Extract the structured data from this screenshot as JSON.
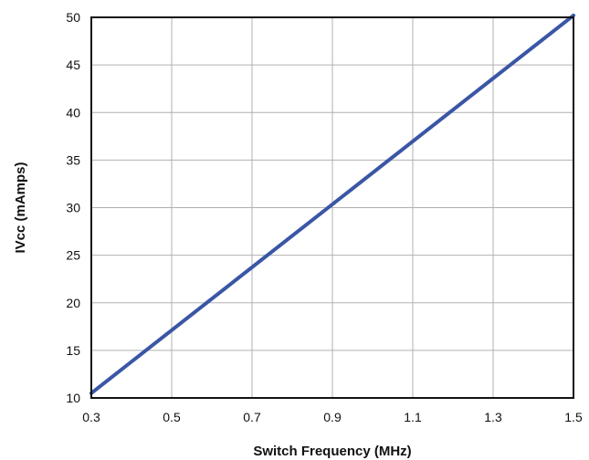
{
  "chart_data": {
    "type": "line",
    "title": "",
    "xlabel": "Switch Frequency (MHz)",
    "ylabel": "IVcc (mAmps)",
    "xlim": [
      0.3,
      1.5
    ],
    "ylim": [
      10,
      50
    ],
    "x_ticks": [
      "0.3",
      "0.5",
      "0.7",
      "0.9",
      "1.1",
      "1.3",
      "1.5"
    ],
    "y_ticks": [
      "10",
      "15",
      "20",
      "25",
      "30",
      "35",
      "40",
      "45",
      "50"
    ],
    "grid": true,
    "legend": "none",
    "series": [
      {
        "color": "#3a56a5",
        "x": [
          0.3,
          1.5
        ],
        "y": [
          10.5,
          50.2
        ]
      }
    ]
  }
}
